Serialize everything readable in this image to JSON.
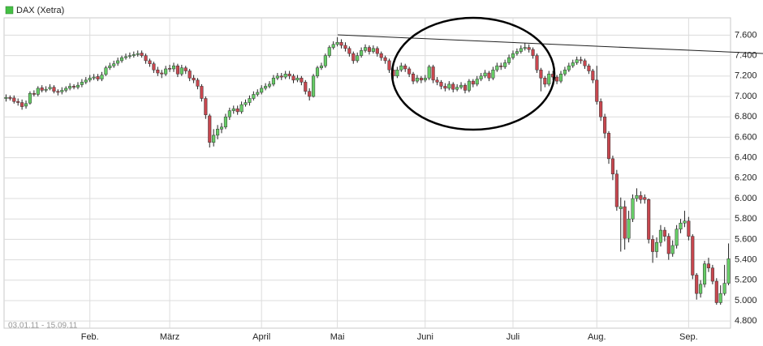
{
  "chart_data": {
    "type": "candlestick",
    "legend_label": "DAX (Xetra)",
    "legend_color": "#44c044",
    "date_range": "03.01.11 - 15.09.11",
    "up_color": "#66cc66",
    "down_color": "#c8474f",
    "grid": true,
    "ylim": [
      4730,
      7770
    ],
    "yticks": [
      {
        "value": 4800,
        "label": "4.800"
      },
      {
        "value": 5000,
        "label": "5.000"
      },
      {
        "value": 5200,
        "label": "5.200"
      },
      {
        "value": 5400,
        "label": "5.400"
      },
      {
        "value": 5600,
        "label": "5.600"
      },
      {
        "value": 5800,
        "label": "5.800"
      },
      {
        "value": 6000,
        "label": "6.000"
      },
      {
        "value": 6200,
        "label": "6.200"
      },
      {
        "value": 6400,
        "label": "6.400"
      },
      {
        "value": 6600,
        "label": "6.600"
      },
      {
        "value": 6800,
        "label": "6.800"
      },
      {
        "value": 7000,
        "label": "7.000"
      },
      {
        "value": 7200,
        "label": "7.200"
      },
      {
        "value": 7400,
        "label": "7.400"
      },
      {
        "value": 7600,
        "label": "7.600"
      }
    ],
    "categories": [
      null,
      null,
      null,
      null,
      null,
      null,
      null,
      null,
      null,
      null,
      null,
      null,
      null,
      null,
      null,
      null,
      null,
      null,
      null,
      null,
      null,
      "Feb.",
      null,
      null,
      null,
      null,
      null,
      null,
      null,
      null,
      null,
      null,
      null,
      null,
      null,
      null,
      null,
      null,
      null,
      null,
      null,
      "März",
      null,
      null,
      null,
      null,
      null,
      null,
      null,
      null,
      null,
      null,
      null,
      null,
      null,
      null,
      null,
      null,
      null,
      null,
      null,
      null,
      null,
      null,
      "April",
      null,
      null,
      null,
      null,
      null,
      null,
      null,
      null,
      null,
      null,
      null,
      null,
      null,
      null,
      null,
      null,
      null,
      null,
      "Mai",
      null,
      null,
      null,
      null,
      null,
      null,
      null,
      null,
      null,
      null,
      null,
      null,
      null,
      null,
      null,
      null,
      null,
      null,
      null,
      null,
      null,
      "Juni",
      null,
      null,
      null,
      null,
      null,
      null,
      null,
      null,
      null,
      null,
      null,
      null,
      null,
      null,
      null,
      null,
      null,
      null,
      null,
      null,
      null,
      "Juli",
      null,
      null,
      null,
      null,
      null,
      null,
      null,
      null,
      null,
      null,
      null,
      null,
      null,
      null,
      null,
      null,
      null,
      null,
      null,
      null,
      "Aug.",
      null,
      null,
      null,
      null,
      null,
      null,
      null,
      null,
      null,
      null,
      null,
      null,
      null,
      null,
      null,
      null,
      null,
      null,
      null,
      null,
      null,
      null,
      "Sep.",
      null,
      null,
      null,
      null,
      null,
      null,
      null,
      null,
      null,
      null
    ],
    "open": [
      6980,
      6990,
      6985,
      6950,
      6940,
      6905,
      6935,
      7030,
      7020,
      7085,
      7060,
      7075,
      7090,
      7050,
      7045,
      7060,
      7080,
      7100,
      7090,
      7115,
      7140,
      7160,
      7180,
      7195,
      7170,
      7215,
      7280,
      7300,
      7325,
      7350,
      7380,
      7395,
      7400,
      7410,
      7425,
      7400,
      7350,
      7320,
      7260,
      7230,
      7220,
      7275,
      7270,
      7300,
      7220,
      7280,
      7250,
      7180,
      7160,
      7100,
      6980,
      6810,
      6550,
      6620,
      6680,
      6700,
      6800,
      6860,
      6880,
      6850,
      6920,
      6940,
      6980,
      7020,
      7040,
      7080,
      7100,
      7120,
      7180,
      7200,
      7190,
      7220,
      7200,
      7160,
      7180,
      7140,
      7050,
      7000,
      7200,
      7280,
      7300,
      7400,
      7480,
      7510,
      7530,
      7500,
      7470,
      7420,
      7350,
      7400,
      7450,
      7480,
      7440,
      7470,
      7420,
      7380,
      7350,
      7260,
      7200,
      7260,
      7300,
      7270,
      7220,
      7150,
      7180,
      7160,
      7180,
      7290,
      7160,
      7140,
      7100,
      7080,
      7120,
      7070,
      7090,
      7110,
      7060,
      7150,
      7120,
      7170,
      7200,
      7230,
      7180,
      7260,
      7300,
      7290,
      7330,
      7380,
      7420,
      7440,
      7470,
      7480,
      7460,
      7400,
      7260,
      7180,
      7120,
      7220,
      7190,
      7150,
      7220,
      7260,
      7300,
      7330,
      7360,
      7350,
      7300,
      7250,
      7160,
      6950,
      6800,
      6640,
      6390,
      6240,
      5900,
      5920,
      5610,
      5800,
      6000,
      6030,
      6010,
      5990,
      5600,
      5480,
      5570,
      5690,
      5630,
      5460,
      5540,
      5700,
      5760,
      5780,
      5630,
      5250,
      5070,
      5160,
      5360,
      5320,
      5190,
      4980,
      5070,
      5170
    ],
    "high": [
      7020,
      7010,
      7010,
      6980,
      6970,
      6960,
      7050,
      7060,
      7100,
      7110,
      7100,
      7120,
      7110,
      7070,
      7090,
      7100,
      7130,
      7120,
      7140,
      7170,
      7190,
      7210,
      7220,
      7220,
      7240,
      7300,
      7330,
      7350,
      7380,
      7400,
      7420,
      7430,
      7440,
      7450,
      7450,
      7420,
      7370,
      7340,
      7290,
      7260,
      7300,
      7310,
      7330,
      7320,
      7310,
      7300,
      7270,
      7210,
      7180,
      7120,
      7000,
      6830,
      6680,
      6720,
      6740,
      6830,
      6890,
      6910,
      6910,
      6950,
      6970,
      7010,
      7050,
      7070,
      7110,
      7130,
      7150,
      7210,
      7230,
      7230,
      7250,
      7250,
      7220,
      7210,
      7200,
      7160,
      7080,
      7220,
      7300,
      7330,
      7420,
      7500,
      7540,
      7580,
      7560,
      7530,
      7490,
      7440,
      7430,
      7480,
      7510,
      7500,
      7500,
      7490,
      7440,
      7400,
      7370,
      7280,
      7290,
      7330,
      7320,
      7290,
      7240,
      7210,
      7200,
      7210,
      7310,
      7310,
      7190,
      7160,
      7130,
      7150,
      7140,
      7120,
      7140,
      7130,
      7170,
      7170,
      7200,
      7230,
      7260,
      7250,
      7290,
      7330,
      7330,
      7360,
      7410,
      7450,
      7470,
      7500,
      7520,
      7510,
      7480,
      7420,
      7280,
      7200,
      7250,
      7250,
      7210,
      7250,
      7290,
      7330,
      7360,
      7390,
      7390,
      7370,
      7320,
      7270,
      7300,
      6980,
      6830,
      6660,
      6420,
      6280,
      6010,
      5980,
      5880,
      6040,
      6100,
      6070,
      6040,
      6000,
      5640,
      5620,
      5740,
      5720,
      5660,
      5590,
      5740,
      5800,
      5880,
      5820,
      5650,
      5270,
      5200,
      5390,
      5420,
      5350,
      5220,
      5150,
      5350,
      5560
    ],
    "low": [
      6950,
      6960,
      6930,
      6910,
      6870,
      6880,
      6920,
      7000,
      7000,
      7040,
      7040,
      7060,
      7030,
      7010,
      7020,
      7040,
      7060,
      7070,
      7070,
      7090,
      7120,
      7140,
      7160,
      7150,
      7150,
      7200,
      7260,
      7280,
      7300,
      7330,
      7360,
      7370,
      7380,
      7390,
      7380,
      7320,
      7290,
      7230,
      7200,
      7180,
      7200,
      7240,
      7240,
      7190,
      7200,
      7220,
      7150,
      7130,
      7070,
      6950,
      6780,
      6500,
      6510,
      6580,
      6640,
      6680,
      6770,
      6830,
      6820,
      6830,
      6900,
      6910,
      6960,
      7000,
      7020,
      7060,
      7080,
      7100,
      7160,
      7160,
      7170,
      7170,
      7130,
      7140,
      7110,
      7020,
      6960,
      6990,
      7180,
      7260,
      7280,
      7380,
      7460,
      7490,
      7470,
      7440,
      7390,
      7320,
      7330,
      7380,
      7430,
      7410,
      7420,
      7390,
      7350,
      7320,
      7230,
      7170,
      7180,
      7240,
      7240,
      7190,
      7120,
      7130,
      7130,
      7140,
      7160,
      7130,
      7110,
      7070,
      7050,
      7060,
      7040,
      7050,
      7070,
      7030,
      7040,
      7090,
      7100,
      7150,
      7180,
      7150,
      7160,
      7240,
      7260,
      7270,
      7310,
      7360,
      7400,
      7420,
      7450,
      7430,
      7370,
      7230,
      7050,
      7090,
      7100,
      7160,
      7120,
      7130,
      7200,
      7240,
      7280,
      7310,
      7320,
      7270,
      7220,
      7130,
      6920,
      6760,
      6590,
      6340,
      6180,
      5880,
      5480,
      5500,
      5570,
      5770,
      5970,
      5950,
      5950,
      5560,
      5370,
      5420,
      5530,
      5580,
      5400,
      5430,
      5510,
      5660,
      5720,
      5590,
      5210,
      5010,
      5030,
      5130,
      5280,
      5160,
      4960,
      4960,
      5050,
      5150
    ],
    "close": [
      6990,
      6980,
      6950,
      6940,
      6900,
      6930,
      7030,
      7020,
      7080,
      7060,
      7070,
      7090,
      7050,
      7040,
      7060,
      7080,
      7100,
      7090,
      7110,
      7140,
      7160,
      7180,
      7190,
      7170,
      7210,
      7280,
      7300,
      7320,
      7350,
      7380,
      7390,
      7400,
      7410,
      7420,
      7400,
      7350,
      7320,
      7260,
      7230,
      7220,
      7270,
      7270,
      7300,
      7220,
      7280,
      7250,
      7180,
      7160,
      7100,
      6980,
      6820,
      6550,
      6620,
      6680,
      6700,
      6800,
      6860,
      6880,
      6850,
      6920,
      6940,
      6980,
      7020,
      7040,
      7080,
      7100,
      7120,
      7180,
      7200,
      7190,
      7220,
      7200,
      7160,
      7180,
      7140,
      7050,
      7000,
      7200,
      7280,
      7300,
      7400,
      7480,
      7510,
      7530,
      7500,
      7470,
      7420,
      7350,
      7400,
      7450,
      7480,
      7440,
      7470,
      7420,
      7380,
      7350,
      7260,
      7200,
      7260,
      7300,
      7270,
      7220,
      7150,
      7180,
      7160,
      7180,
      7290,
      7160,
      7140,
      7100,
      7080,
      7120,
      7070,
      7090,
      7110,
      7060,
      7150,
      7120,
      7170,
      7200,
      7230,
      7180,
      7260,
      7300,
      7290,
      7330,
      7380,
      7420,
      7440,
      7470,
      7480,
      7460,
      7400,
      7260,
      7180,
      7120,
      7220,
      7190,
      7150,
      7220,
      7260,
      7300,
      7330,
      7360,
      7350,
      7300,
      7250,
      7160,
      6950,
      6800,
      6640,
      6390,
      6240,
      5920,
      5920,
      5610,
      5800,
      6000,
      6030,
      5990,
      5990,
      5600,
      5480,
      5570,
      5690,
      5630,
      5460,
      5540,
      5700,
      5760,
      5780,
      5630,
      5250,
      5070,
      5160,
      5360,
      5320,
      5190,
      4980,
      5070,
      5170,
      5410
    ]
  }
}
